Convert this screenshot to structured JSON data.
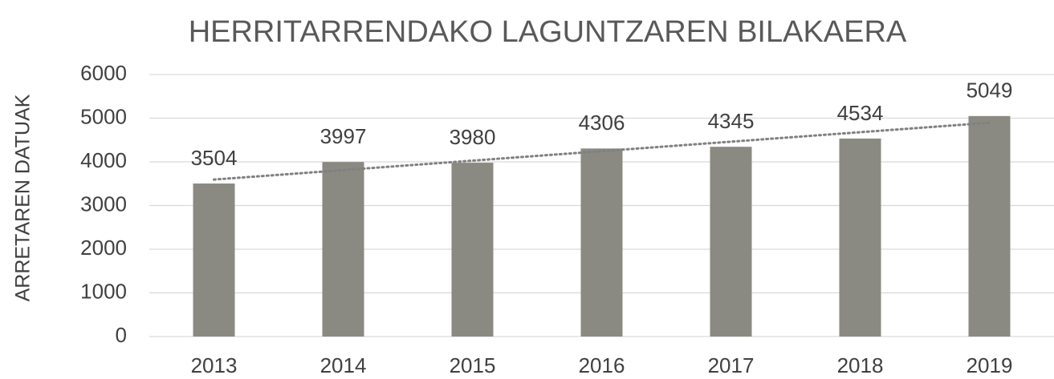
{
  "chart_data": {
    "type": "bar",
    "title": "HERRITARRENDAKO LAGUNTZAREN BILAKAERA",
    "y_label": "ARRETAREN DATUAK",
    "categories": [
      "2013",
      "2014",
      "2015",
      "2016",
      "2017",
      "2018",
      "2019"
    ],
    "values": [
      3504,
      3997,
      3980,
      4306,
      4345,
      4534,
      5049
    ],
    "color": "#8a8a82",
    "ylim": [
      0,
      6000
    ],
    "yticks": [
      0,
      1000,
      2000,
      3000,
      4000,
      5000,
      6000
    ],
    "grid": true,
    "trendline": "linear"
  }
}
